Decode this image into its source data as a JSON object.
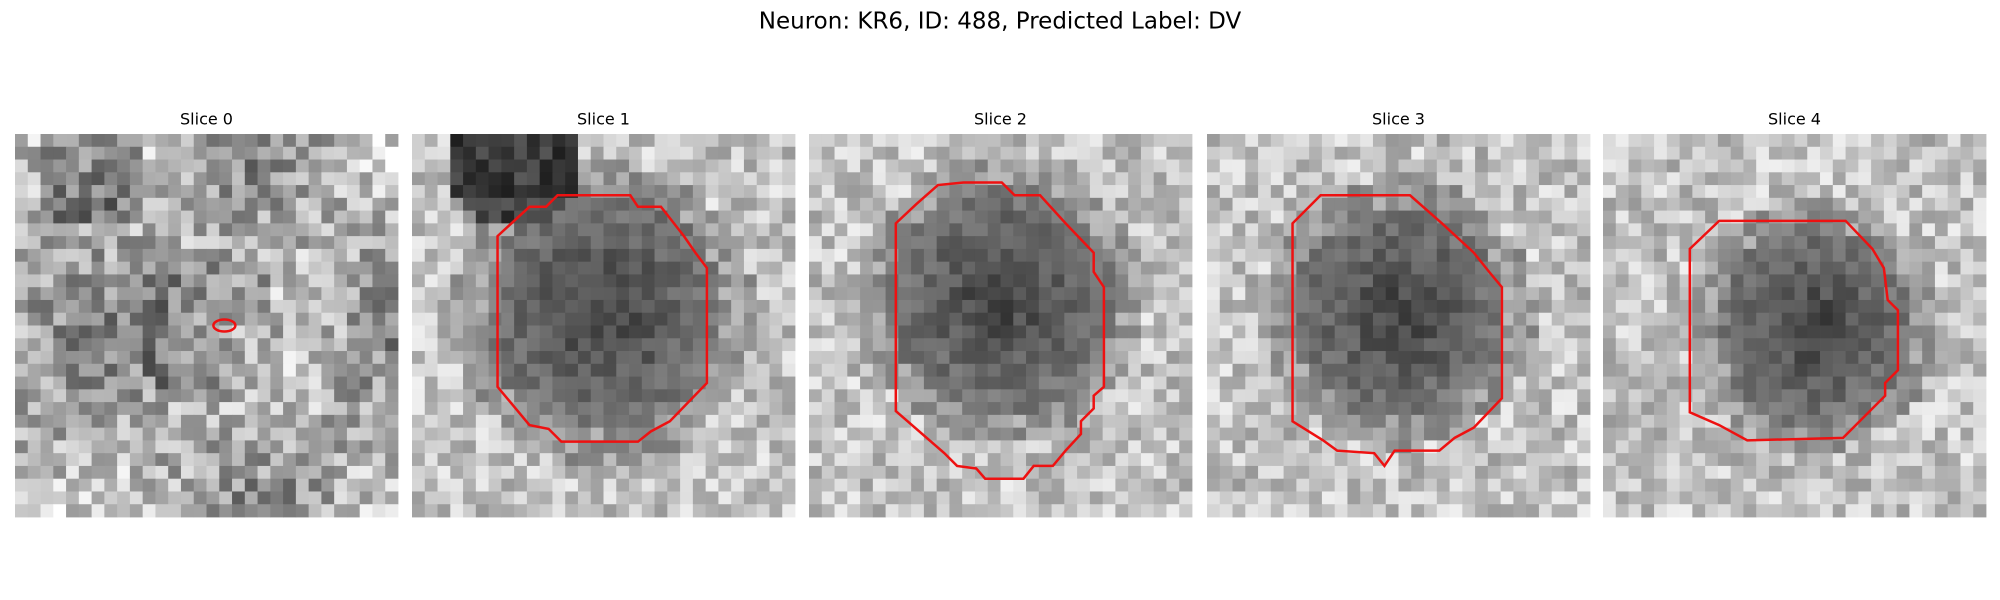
{
  "title": "Neuron: KR6, ID: 488, Predicted Label: DV",
  "panels": [
    {
      "title": "Slice 0"
    },
    {
      "title": "Slice 1"
    },
    {
      "title": "Slice 2"
    },
    {
      "title": "Slice 3"
    },
    {
      "title": "Slice 4"
    }
  ]
}
